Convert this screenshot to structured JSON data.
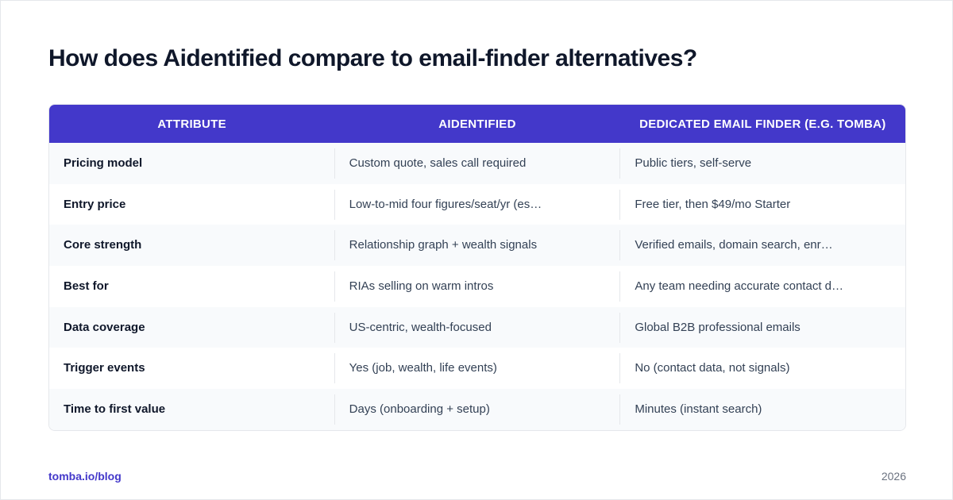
{
  "title": "How does Aidentified compare to email-finder alternatives?",
  "table": {
    "header": [
      "ATTRIBUTE",
      "AIDENTIFIED",
      "DEDICATED EMAIL FINDER (E.G. TOMBA)"
    ],
    "rows": [
      [
        "Pricing model",
        "Custom quote, sales call required",
        "Public tiers, self-serve"
      ],
      [
        "Entry price",
        "Low-to-mid four figures/seat/yr (es…",
        "Free tier, then $49/mo Starter"
      ],
      [
        "Core strength",
        "Relationship graph + wealth signals",
        "Verified emails, domain search, enr…"
      ],
      [
        "Best for",
        "RIAs selling on warm intros",
        "Any team needing accurate contact d…"
      ],
      [
        "Data coverage",
        "US-centric, wealth-focused",
        "Global B2B professional emails"
      ],
      [
        "Trigger events",
        "Yes (job, wealth, life events)",
        "No (contact data, not signals)"
      ],
      [
        "Time to first value",
        "Days (onboarding + setup)",
        "Minutes (instant search)"
      ]
    ]
  },
  "footer": {
    "source": "tomba.io/blog",
    "year": "2026"
  }
}
